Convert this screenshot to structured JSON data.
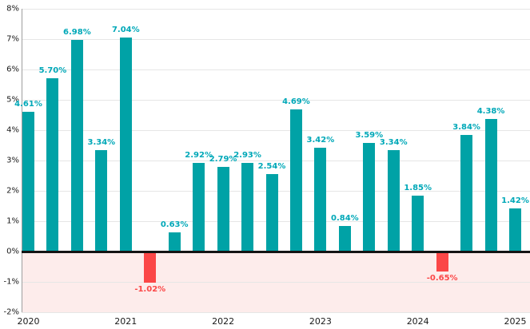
{
  "chart_data": {
    "type": "bar",
    "title": "",
    "unit": "%",
    "grid": true,
    "legend": null,
    "ylim": [
      -2,
      8
    ],
    "y_tick_labels": [
      "8%",
      "7%",
      "6%",
      "5%",
      "4%",
      "3%",
      "2%",
      "1%",
      "0%",
      "-1%",
      "-2%"
    ],
    "y_tick_values": [
      8,
      7,
      6,
      5,
      4,
      3,
      2,
      1,
      0,
      -1,
      -2
    ],
    "x_tick_labels": [
      "2020",
      "2021",
      "2022",
      "2023",
      "2024",
      "2025"
    ],
    "x_tick_bar_indices": [
      0,
      4,
      8,
      12,
      16,
      20
    ],
    "values": [
      4.61,
      5.7,
      6.98,
      3.34,
      7.04,
      -1.02,
      0.63,
      2.92,
      2.79,
      2.93,
      2.54,
      4.69,
      3.42,
      0.84,
      3.59,
      3.34,
      1.85,
      -0.65,
      3.84,
      4.38,
      1.42
    ],
    "value_labels": [
      "4.61%",
      "5.70%",
      "6.98%",
      "3.34%",
      "7.04%",
      "-1.02%",
      "0.63%",
      "2.92%",
      "2.79%",
      "2.93%",
      "2.54%",
      "4.69%",
      "3.42%",
      "0.84%",
      "3.59%",
      "3.34%",
      "1.85%",
      "-0.65%",
      "3.84%",
      "4.38%",
      "1.42%"
    ],
    "series_by_year": [
      {
        "year": "2020",
        "values": [
          4.61,
          5.7,
          6.98,
          3.34
        ]
      },
      {
        "year": "2021",
        "values": [
          7.04,
          -1.02,
          0.63,
          2.92
        ]
      },
      {
        "year": "2022",
        "values": [
          2.79,
          2.93,
          2.54,
          4.69
        ]
      },
      {
        "year": "2023",
        "values": [
          3.42,
          0.84,
          3.59,
          3.34
        ]
      },
      {
        "year": "2024",
        "values": [
          1.85,
          -0.65,
          3.84,
          4.38
        ]
      },
      {
        "year": "2025",
        "values": [
          1.42
        ]
      }
    ],
    "colors": {
      "bar_positive": "#00a2a6",
      "bar_negative": "#fb4747",
      "label_positive": "#00a8b8",
      "label_negative": "#fb4747",
      "negative_region_bg": "#fdeceb",
      "gridline": "#e6e6e6",
      "zero_line": "#141414",
      "axis_spine": "#9e9e9e",
      "tick_text": "#1a1a1a",
      "background": "#ffffff"
    }
  }
}
